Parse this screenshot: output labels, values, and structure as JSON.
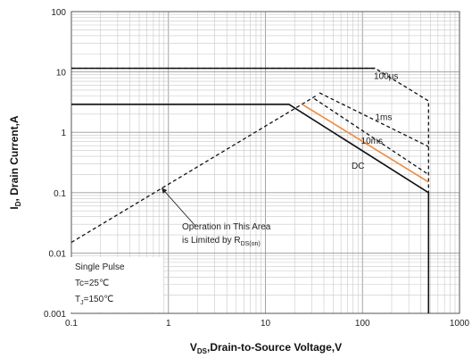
{
  "chart_data": {
    "type": "line",
    "scale": {
      "x": "log",
      "y": "log"
    },
    "xlim": [
      0.1,
      1000
    ],
    "ylim": [
      0.001,
      100
    ],
    "x_ticks": [
      "0.1",
      "1",
      "10",
      "100",
      "1000"
    ],
    "y_ticks": [
      "0.001",
      "0.01",
      "0.1",
      "1",
      "10",
      "100"
    ],
    "xlabel": {
      "main": "V",
      "sub": "DS",
      "rest": ",Drain-to-Source Voltage,V"
    },
    "ylabel": {
      "main": "I",
      "sub": "D",
      "rest": ", Drain Current,A"
    },
    "grid": true,
    "series": [
      {
        "name": "100μs",
        "color": "#111111",
        "dashed": true,
        "points": [
          [
            0.1,
            11.5
          ],
          [
            135,
            11.5
          ],
          [
            480,
            3.3
          ],
          [
            480,
            0.001
          ]
        ]
      },
      {
        "name": "1ms",
        "color": "#111111",
        "dashed": true,
        "points": [
          [
            36,
            4.5
          ],
          [
            480,
            0.58
          ]
        ]
      },
      {
        "name": "10ms",
        "color": "#111111",
        "dashed": true,
        "points": [
          [
            32,
            3.6
          ],
          [
            480,
            0.2
          ]
        ]
      },
      {
        "name": "",
        "color": "#111111",
        "dashed": true,
        "points": [
          [
            0.1,
            0.015
          ],
          [
            33,
            4.0
          ]
        ]
      },
      {
        "name": "",
        "color": "#f08a3c",
        "dashed": false,
        "points": [
          [
            24,
            2.9
          ],
          [
            480,
            0.15
          ]
        ]
      },
      {
        "name": "DC",
        "color": "#111111",
        "dashed": false,
        "points": [
          [
            0.1,
            2.9
          ],
          [
            17.5,
            2.9
          ],
          [
            480,
            0.1
          ],
          [
            480,
            0.001
          ]
        ]
      },
      {
        "name": "",
        "color": "#111111",
        "dashed": false,
        "points": [
          [
            0.1,
            11.5
          ],
          [
            135,
            11.5
          ]
        ]
      }
    ],
    "labels": [
      {
        "text": "100μs",
        "x": 175,
        "y": 7.6
      },
      {
        "text": "1ms",
        "x": 165,
        "y": 1.6
      },
      {
        "text": "10ms",
        "x": 125,
        "y": 0.65
      },
      {
        "text": "DC",
        "x": 90,
        "y": 0.25
      }
    ],
    "annotation": {
      "line1": "Operation in This Area",
      "line2_main": "is Limited by R",
      "line2_sub": "DS(on)",
      "arrow_to": [
        0.85,
        0.12
      ],
      "arrow_from": [
        1.9,
        0.028
      ]
    },
    "conditions_box": {
      "line1": "Single Pulse",
      "line2": "Tc=25℃",
      "line3_main": "T",
      "line3_sub": "J",
      "line3_rest": "=150℃"
    }
  }
}
